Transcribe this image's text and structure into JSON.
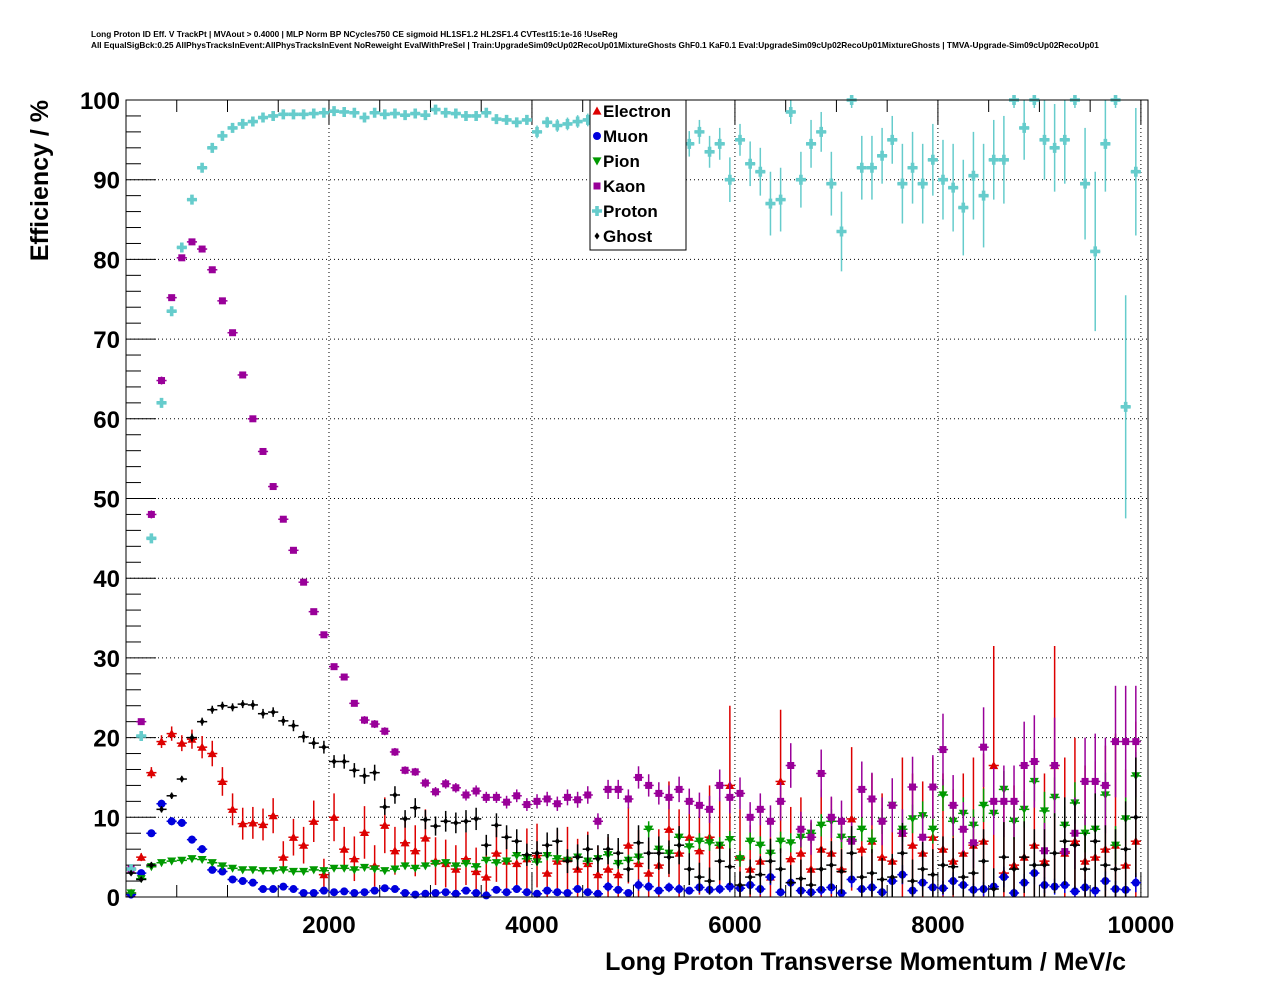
{
  "chart_data": {
    "type": "scatter",
    "title_line1": "Long Proton ID Eff. V TrackPt | MVAout > 0.4000 | MLP Norm BP NCycles750 CE sigmoid HL1SF1.2 HL2SF1.4 CVTest15:1e-16 !UseReg",
    "title_line2": "All EqualSigBck:0.25 AllPhysTracksInEvent:AllPhysTracksInEvent NoReweight EvalWithPreSel | Train:UpgradeSim09cUp02RecoUp01MixtureGhosts GhF0.1 KaF0.1 Eval:UpgradeSim09cUp02RecoUp01MixtureGhosts | TMVA-Upgrade-Sim09cUp02RecoUp01",
    "xlabel": "Long Proton Transverse Momentum / MeV/c",
    "ylabel": "Efficiency / %",
    "xlim": [
      0,
      10070
    ],
    "ylim": [
      0,
      100
    ],
    "x_ticks": [
      2000,
      4000,
      6000,
      8000,
      10000
    ],
    "x_tick_labels": [
      "2000",
      "4000",
      "6000",
      "8000",
      "10000"
    ],
    "y_ticks": [
      0,
      10,
      20,
      30,
      40,
      50,
      60,
      70,
      80,
      90,
      100
    ],
    "y_tick_labels": [
      "0",
      "10",
      "20",
      "30",
      "40",
      "50",
      "60",
      "70",
      "80",
      "90",
      "100"
    ],
    "grid": true,
    "legend_position": "top-center",
    "bin_width": 100,
    "x_start": 50,
    "series": [
      {
        "name": "Electron",
        "color": "#dd0000",
        "marker": "triangle-up",
        "values": [
          0.5,
          5,
          15.6,
          19.5,
          20.5,
          19.3,
          19.8,
          18.8,
          18,
          14.5,
          11,
          9.2,
          9.3,
          9.1,
          10.2,
          5,
          7.5,
          6.5,
          9.5,
          2.8,
          10,
          6,
          4.8,
          8.1,
          3.9,
          9,
          5.8,
          6.8,
          5.8,
          7.4,
          4.5,
          4.2,
          3.5,
          4.8,
          3.2,
          2.5,
          5.5,
          4.5,
          4.2,
          4.8,
          5.2,
          3,
          4.5,
          4.8,
          3.5,
          4.2,
          2.8,
          3.5,
          2.8,
          6.5,
          4.2,
          3,
          4,
          8.5,
          5.5,
          7.5,
          5.8,
          7.5,
          6.5,
          14,
          5,
          3.5,
          4.5,
          2.5,
          14.5,
          4.8,
          5.5,
          3.5,
          6,
          5.5,
          3.5,
          9.8,
          6,
          7,
          5,
          4.5,
          8,
          6.5,
          5.5,
          7.5,
          6,
          4.5,
          5.5,
          6.5,
          7,
          16.5,
          3,
          4,
          5,
          6.5,
          4.5,
          16.5,
          5.5,
          7,
          4.5,
          5,
          6,
          6.5,
          4,
          7
        ],
        "errors": [
          0.3,
          0.5,
          0.7,
          0.8,
          0.9,
          1,
          1.2,
          1.4,
          1.6,
          1.8,
          2,
          2,
          2,
          2,
          2.2,
          2,
          2.3,
          2.3,
          2.6,
          2,
          3,
          2.8,
          2.8,
          3.3,
          2.6,
          3.5,
          3,
          3.3,
          3.2,
          3.6,
          3,
          3,
          3,
          3.3,
          3,
          2.8,
          3.6,
          3.5,
          3.5,
          3.8,
          4,
          3.5,
          4,
          4,
          3.8,
          4,
          3.6,
          4,
          3.8,
          4.8,
          4.2,
          4,
          4.5,
          6,
          5.5,
          6,
          5.5,
          6.5,
          6,
          10,
          6,
          5.5,
          6,
          5,
          9,
          6.5,
          7,
          6,
          7.5,
          7,
          6,
          9,
          8,
          8.5,
          8,
          8,
          9.5,
          9,
          9,
          10,
          9.5,
          9,
          10,
          11,
          11,
          15,
          9,
          10,
          11,
          12,
          11,
          15,
          12,
          13,
          12,
          12,
          13,
          14,
          12,
          15
        ]
      },
      {
        "name": "Muon",
        "color": "#0000dd",
        "marker": "circle",
        "values": [
          0.3,
          3,
          8,
          11.7,
          9.5,
          9.3,
          7.2,
          6,
          3.4,
          3.2,
          2.2,
          2,
          1.8,
          1,
          1,
          1.3,
          1,
          0.5,
          0.5,
          0.8,
          0.6,
          0.7,
          0.5,
          0.6,
          0.8,
          1.1,
          1,
          0.5,
          0.3,
          0.4,
          0.5,
          0.6,
          0.4,
          0.8,
          0.5,
          0.2,
          0.9,
          0.6,
          1,
          0.6,
          0.4,
          0.8,
          0.6,
          0.5,
          1,
          0.6,
          0.4,
          1.3,
          0.9,
          0.5,
          1.5,
          1.3,
          0.8,
          1.2,
          1,
          0.8,
          1.2,
          0.9,
          1,
          1.3,
          1.1,
          1.5,
          1,
          2.5,
          0.6,
          1.8,
          0.8,
          0.6,
          0.9,
          1.2,
          0.5,
          2.2,
          1,
          1.2,
          0.6,
          2,
          2.8,
          0.8,
          1.8,
          1.2,
          1.1,
          2,
          1.5,
          0.9,
          1,
          1.3,
          2.5,
          0.5,
          1.8,
          3,
          1.5,
          1.3,
          1.5,
          0.7,
          1.2,
          0.8,
          2,
          1,
          0.9,
          1.8
        ],
        "errors": [
          0.1,
          0.3,
          0.4,
          0.5,
          0.5,
          0.5,
          0.5,
          0.5,
          0.4,
          0.4,
          0.3,
          0.3,
          0.3,
          0.3,
          0.3,
          0.3,
          0.3,
          0.2,
          0.2,
          0.3,
          0.3,
          0.3,
          0.3,
          0.3,
          0.3,
          0.4,
          0.4,
          0.3,
          0.2,
          0.3,
          0.3,
          0.3,
          0.3,
          0.4,
          0.3,
          0.2,
          0.4,
          0.4,
          0.5,
          0.4,
          0.3,
          0.5,
          0.4,
          0.4,
          0.5,
          0.4,
          0.4,
          0.6,
          0.5,
          0.4,
          0.7,
          0.6,
          0.5,
          0.6,
          0.6,
          0.5,
          0.7,
          0.6,
          0.6,
          0.7,
          0.7,
          0.8,
          0.7,
          1,
          0.5,
          0.9,
          0.6,
          0.5,
          0.7,
          0.8,
          0.5,
          1,
          0.8,
          0.8,
          0.6,
          1,
          1.2,
          0.7,
          1,
          0.9,
          0.9,
          1.1,
          1,
          0.8,
          0.9,
          1,
          1.3,
          0.6,
          1.1,
          1.4,
          1,
          1,
          1,
          0.7,
          1,
          0.8,
          1.2,
          1,
          0.9,
          1.2
        ]
      },
      {
        "name": "Pion",
        "color": "#009900",
        "marker": "triangle-down",
        "values": [
          0.5,
          2.3,
          3.8,
          4.3,
          4.5,
          4.6,
          4.8,
          4.7,
          4.3,
          3.9,
          3.6,
          3.4,
          3.4,
          3.3,
          3.3,
          3.4,
          3.2,
          3.2,
          3.4,
          3.3,
          3.6,
          3.6,
          3.4,
          3.7,
          3.5,
          3.3,
          3.5,
          3.9,
          3.6,
          3.9,
          4.2,
          4.3,
          3.9,
          4.2,
          3.8,
          4.6,
          4.3,
          4.5,
          5.2,
          4.8,
          4.4,
          5.2,
          4.8,
          4.6,
          5,
          4.5,
          4.8,
          5.3,
          4.2,
          4.6,
          5,
          8.5,
          6,
          5.5,
          7.5,
          6.3,
          7,
          6.8,
          6.5,
          7.2,
          4.8,
          7,
          6.5,
          5.5,
          7,
          6.8,
          7.5,
          8,
          9,
          9.5,
          7.5,
          7.2,
          8.5,
          7,
          9.5,
          11.5,
          8.5,
          9.8,
          10.2,
          8.5,
          12.8,
          9.5,
          10.5,
          9,
          11.5,
          10.5,
          13.5,
          9.5,
          11,
          14.5,
          10.8,
          12.5,
          9,
          11.8,
          8,
          8.5,
          12.8,
          6.5,
          9.8,
          15.2
        ],
        "errors": [
          0.1,
          0.2,
          0.2,
          0.2,
          0.2,
          0.2,
          0.2,
          0.2,
          0.2,
          0.2,
          0.2,
          0.2,
          0.2,
          0.2,
          0.2,
          0.2,
          0.2,
          0.2,
          0.2,
          0.2,
          0.2,
          0.2,
          0.2,
          0.3,
          0.3,
          0.3,
          0.3,
          0.3,
          0.3,
          0.3,
          0.3,
          0.4,
          0.4,
          0.4,
          0.4,
          0.4,
          0.4,
          0.5,
          0.5,
          0.5,
          0.5,
          0.6,
          0.6,
          0.6,
          0.6,
          0.6,
          0.6,
          0.7,
          0.7,
          0.7,
          0.8,
          1,
          0.9,
          0.9,
          1,
          1,
          1,
          1,
          1,
          1.1,
          1,
          1.1,
          1.1,
          1.1,
          1.2,
          1.2,
          1.3,
          1.3,
          1.4,
          1.5,
          1.4,
          1.4,
          1.5,
          1.5,
          1.6,
          1.8,
          1.6,
          1.8,
          1.8,
          1.8,
          2,
          1.9,
          2,
          2,
          2.1,
          2.1,
          2.3,
          2.2,
          2.3,
          2.5,
          2.4,
          2.5,
          2.4,
          2.6,
          2.4,
          2.5,
          2.8,
          2.4,
          2.7,
          3
        ]
      },
      {
        "name": "Kaon",
        "color": "#990099",
        "marker": "square",
        "values": [
          3.5,
          22,
          48,
          64.8,
          75.2,
          80.2,
          82.2,
          81.3,
          78.7,
          74.8,
          70.8,
          65.5,
          60,
          55.9,
          51.5,
          47.4,
          43.5,
          39.5,
          35.8,
          32.9,
          28.9,
          27.6,
          24.3,
          22.2,
          21.7,
          20.8,
          18.2,
          15.9,
          15.7,
          14.3,
          13.2,
          14.2,
          13.7,
          12.8,
          13.3,
          12.5,
          12.5,
          11.9,
          12.7,
          11.6,
          12,
          12.3,
          11.7,
          12.5,
          12.2,
          12.8,
          9.5,
          13.5,
          13.5,
          12.3,
          15,
          14,
          13,
          12.5,
          13.5,
          12,
          11.5,
          11,
          14,
          12.5,
          13,
          10,
          11,
          9.5,
          12,
          16.5,
          8.5,
          7.5,
          15.5,
          10,
          9.5,
          7,
          13.5,
          12.3,
          9.5,
          11.5,
          8,
          13.8,
          7.5,
          13.8,
          18.5,
          11.5,
          8.5,
          6.8,
          18.8,
          12,
          12,
          12,
          16.5,
          17,
          5.8,
          16.5,
          5.7,
          8,
          14.5,
          14.5,
          14,
          19.5,
          19.5,
          19.5
        ],
        "errors": [
          0.3,
          0.4,
          0.5,
          0.5,
          0.4,
          0.4,
          0.4,
          0.4,
          0.4,
          0.4,
          0.4,
          0.4,
          0.4,
          0.4,
          0.4,
          0.4,
          0.4,
          0.4,
          0.4,
          0.4,
          0.4,
          0.4,
          0.4,
          0.5,
          0.5,
          0.5,
          0.5,
          0.5,
          0.5,
          0.6,
          0.6,
          0.6,
          0.6,
          0.7,
          0.7,
          0.7,
          0.7,
          0.8,
          0.8,
          0.8,
          0.9,
          0.9,
          0.9,
          1,
          1,
          1.1,
          1,
          1.2,
          1.2,
          1.2,
          1.4,
          1.4,
          1.4,
          1.5,
          1.6,
          1.6,
          1.6,
          1.7,
          2,
          2,
          2,
          1.9,
          2,
          2,
          2.4,
          2.8,
          2.2,
          2.2,
          3,
          2.6,
          2.6,
          2.4,
          3.5,
          3.3,
          3,
          3.4,
          3,
          3.8,
          3,
          4,
          4.5,
          3.8,
          3.4,
          3.2,
          5,
          4.2,
          4.5,
          4.5,
          5.5,
          5.8,
          3.5,
          6,
          3.8,
          4.5,
          5.5,
          6,
          6,
          7,
          7,
          7
        ]
      },
      {
        "name": "Proton",
        "color": "#66cccc",
        "marker": "cross",
        "values": [
          3.5,
          20.2,
          45,
          62,
          73.5,
          81.5,
          87.5,
          91.5,
          94,
          95.5,
          96.5,
          97,
          97.3,
          97.8,
          98,
          98.2,
          98.2,
          98.2,
          98.3,
          98.4,
          98.6,
          98.5,
          98.4,
          97.8,
          98.4,
          98.2,
          98.3,
          98.1,
          98.3,
          98.1,
          98.8,
          98.4,
          98.3,
          98,
          98,
          98.4,
          97.6,
          97.5,
          97.2,
          97.5,
          96,
          97.2,
          96.8,
          97,
          97.3,
          97.5,
          97,
          96.5,
          96.5,
          96,
          96,
          95.5,
          96,
          95.5,
          95,
          94.5,
          96,
          93.5,
          94.5,
          90,
          95,
          92,
          91,
          87,
          87.5,
          98.5,
          90,
          94.5,
          96,
          89.5,
          83.5,
          100,
          91.5,
          91.5,
          93,
          95,
          89.5,
          91.5,
          89.5,
          92.5,
          90,
          89,
          86.5,
          90.5,
          88,
          92.5,
          92.5,
          100,
          96.5,
          100,
          95,
          94,
          95,
          100,
          89.5,
          81,
          94.5,
          100,
          61.5,
          91
        ],
        "errors": [
          0.2,
          0.4,
          0.5,
          0.5,
          0.4,
          0.4,
          0.3,
          0.3,
          0.3,
          0.3,
          0.3,
          0.3,
          0.3,
          0.3,
          0.3,
          0.3,
          0.3,
          0.3,
          0.3,
          0.3,
          0.3,
          0.3,
          0.3,
          0.4,
          0.4,
          0.4,
          0.4,
          0.4,
          0.4,
          0.4,
          0.4,
          0.4,
          0.5,
          0.5,
          0.5,
          0.5,
          0.6,
          0.6,
          0.6,
          0.6,
          0.8,
          0.7,
          0.8,
          0.8,
          0.8,
          0.8,
          1,
          1,
          1,
          1.2,
          1.2,
          1.3,
          1.3,
          1.4,
          1.5,
          1.6,
          1.5,
          2,
          2,
          2.8,
          2,
          2.8,
          3,
          4,
          4,
          1.5,
          3.5,
          3,
          2.5,
          4,
          5,
          1,
          4,
          4,
          3.5,
          3,
          5,
          4.5,
          5,
          4.5,
          5,
          5.5,
          6,
          5.5,
          6.5,
          5,
          5.5,
          1,
          4,
          1,
          5,
          5.5,
          5.5,
          1,
          7,
          10,
          6,
          1,
          14,
          8
        ]
      },
      {
        "name": "Ghost",
        "color": "#000000",
        "marker": "diamond",
        "values": [
          3,
          2.2,
          4,
          11,
          12.7,
          14.8,
          20,
          22,
          23.5,
          24,
          23.8,
          24.2,
          24.1,
          23,
          23.2,
          22.1,
          21.5,
          20.1,
          19.3,
          18.8,
          17,
          17,
          15.9,
          15.2,
          15.6,
          11.3,
          12.8,
          9.8,
          11.2,
          9.7,
          8.9,
          9.5,
          9.3,
          9.5,
          9.8,
          6.5,
          9,
          7.5,
          7,
          5.3,
          5.5,
          6.5,
          7,
          4.5,
          5,
          6,
          4.8,
          6,
          5.5,
          3.5,
          6.8,
          5.5,
          5.5,
          5,
          6.5,
          3.5,
          2.5,
          2,
          4.5,
          3.8,
          1.5,
          2.5,
          2.8,
          4.5,
          3.5,
          1.8,
          2.3,
          1.5,
          3.5,
          4,
          3.2,
          5.5,
          2.5,
          3,
          2.2,
          2.5,
          5.5,
          2,
          3.5,
          2.8,
          4,
          3.8,
          2.5,
          3,
          4.5,
          1,
          5,
          3.5,
          5,
          4,
          4,
          5.5,
          7,
          6.5,
          3.5,
          7,
          4,
          3.5,
          6,
          10
        ],
        "errors": [
          0.3,
          0.3,
          0.4,
          0.4,
          0.4,
          0.4,
          0.5,
          0.5,
          0.5,
          0.5,
          0.5,
          0.5,
          0.6,
          0.6,
          0.6,
          0.6,
          0.7,
          0.7,
          0.7,
          0.8,
          0.8,
          0.9,
          0.9,
          1,
          1,
          1,
          1.1,
          1.1,
          1.2,
          1.2,
          1.2,
          1.3,
          1.3,
          1.4,
          1.4,
          1.3,
          1.5,
          1.5,
          1.5,
          1.4,
          1.5,
          1.6,
          1.7,
          1.5,
          1.6,
          1.8,
          1.7,
          1.9,
          1.9,
          1.6,
          2.2,
          2,
          2.1,
          2.1,
          2.4,
          2,
          1.8,
          1.7,
          2.4,
          2.3,
          1.7,
          2.2,
          2.3,
          2.8,
          2.6,
          2.2,
          2.4,
          2.2,
          2.8,
          3,
          2.8,
          3.4,
          2.6,
          3,
          2.7,
          2.9,
          3.8,
          2.7,
          3.4,
          3.2,
          3.6,
          3.6,
          3.2,
          3.5,
          4,
          2.6,
          4.4,
          4,
          4.5,
          4.5,
          4.5,
          5,
          5.5,
          5.5,
          4.6,
          6,
          5,
          5,
          6,
          7.5
        ]
      }
    ]
  }
}
